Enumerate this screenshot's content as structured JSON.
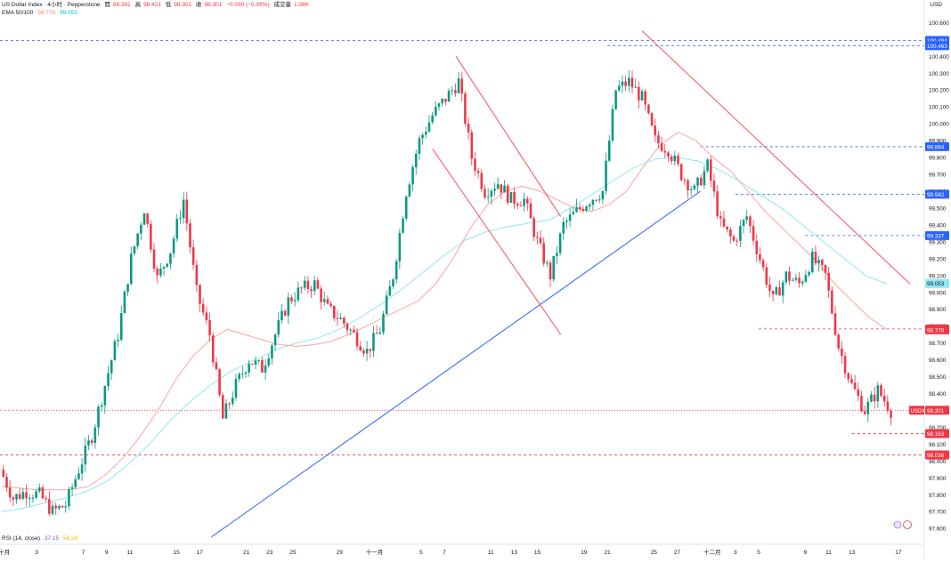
{
  "legend": {
    "symbol": "US Dollar Index · 4小时 · Pepperstone",
    "open_label": "開",
    "open": "98.391",
    "high_label": "高",
    "high": "98.421",
    "low_label": "低",
    "low": "98.301",
    "close_label": "收",
    "close": "98.301",
    "change": "−0.090 (−0.09%)",
    "volume_label": "成交量",
    "volume": "1.08K",
    "ema_label": "EMA 50/100",
    "ema50": "98.778",
    "ema100": "99.053",
    "rsi_label": "RSI (14, close)",
    "rsi1": "37.15",
    "rsi2": "54.24"
  },
  "currency": "USD",
  "colors": {
    "up": "#089981",
    "down": "#f23645",
    "ema50": "#f7a7a0",
    "ema100": "#8fe7f2",
    "trend_blue": "#2962ff",
    "channel": "#f7525f",
    "level": "#2962ff",
    "support": "#f23645"
  },
  "chart_data": {
    "type": "candlestick",
    "timeframe": "4h",
    "ylim": [
      97.58,
      100.66
    ],
    "y_ticks": [
      "100.600",
      "100.500",
      "100.400",
      "100.300",
      "100.200",
      "100.100",
      "100.000",
      "99.900",
      "99.800",
      "99.700",
      "99.600",
      "99.500",
      "99.400",
      "99.300",
      "99.200",
      "99.100",
      "99.000",
      "98.900",
      "98.800",
      "98.700",
      "98.600",
      "98.500",
      "98.400",
      "98.300",
      "98.200",
      "98.100",
      "98.000",
      "97.900",
      "97.800",
      "97.700",
      "97.600"
    ],
    "x_ticks": [
      {
        "label": "十月",
        "x": 0.2
      },
      {
        "label": "3",
        "x": 3
      },
      {
        "label": "7",
        "x": 7
      },
      {
        "label": "9",
        "x": 9
      },
      {
        "label": "11",
        "x": 11
      },
      {
        "label": "15",
        "x": 15
      },
      {
        "label": "17",
        "x": 17
      },
      {
        "label": "21",
        "x": 21
      },
      {
        "label": "23",
        "x": 23
      },
      {
        "label": "25",
        "x": 25
      },
      {
        "label": "29",
        "x": 29
      },
      {
        "label": "十一月",
        "x": 32
      },
      {
        "label": "5",
        "x": 36
      },
      {
        "label": "7",
        "x": 38
      },
      {
        "label": "11",
        "x": 42
      },
      {
        "label": "13",
        "x": 44
      },
      {
        "label": "15",
        "x": 46
      },
      {
        "label": "19",
        "x": 50
      },
      {
        "label": "21",
        "x": 52
      },
      {
        "label": "25",
        "x": 56
      },
      {
        "label": "27",
        "x": 58
      },
      {
        "label": "十二月",
        "x": 61
      },
      {
        "label": "3",
        "x": 63
      },
      {
        "label": "5",
        "x": 65
      },
      {
        "label": "9",
        "x": 69
      },
      {
        "label": "11",
        "x": 71
      },
      {
        "label": "13",
        "x": 73
      },
      {
        "label": "17",
        "x": 77
      }
    ],
    "close": [
      97.95,
      97.78,
      97.82,
      97.8,
      97.7,
      97.74,
      97.95,
      98.15,
      98.45,
      98.75,
      99.2,
      99.5,
      99.08,
      99.25,
      99.55,
      99.0,
      98.75,
      98.25,
      98.45,
      98.6,
      98.55,
      98.75,
      98.95,
      99.02,
      99.05,
      98.9,
      98.84,
      98.75,
      98.65,
      98.78,
      99.1,
      99.6,
      99.9,
      100.05,
      100.15,
      100.25,
      99.8,
      99.6,
      99.65,
      99.55,
      99.55,
      99.3,
      99.1,
      99.4,
      99.48,
      99.55,
      99.6,
      100.2,
      100.25,
      100.15,
      99.9,
      99.85,
      99.7,
      99.6,
      99.75,
      99.4,
      99.3,
      99.45,
      99.2,
      98.95,
      99.1,
      99.05,
      99.2,
      99.1,
      98.68,
      98.45,
      98.3,
      98.42,
      98.3
    ],
    "ema50": [
      97.85,
      97.84,
      97.83,
      97.83,
      97.83,
      97.85,
      97.92,
      98.02,
      98.15,
      98.3,
      98.48,
      98.62,
      98.72,
      98.78,
      98.75,
      98.72,
      98.69,
      98.68,
      98.69,
      98.71,
      98.75,
      98.8,
      98.85,
      98.9,
      98.95,
      99.05,
      99.2,
      99.38,
      99.52,
      99.6,
      99.63,
      99.6,
      99.55,
      99.5,
      99.48,
      99.52,
      99.6,
      99.75,
      99.88,
      99.95,
      99.9,
      99.8,
      99.72,
      99.6,
      99.48,
      99.38,
      99.28,
      99.18,
      99.05,
      98.95,
      98.85,
      98.78
    ],
    "ema100": [
      97.7,
      97.72,
      97.75,
      97.78,
      97.82,
      97.88,
      97.98,
      98.1,
      98.24,
      98.36,
      98.46,
      98.54,
      98.6,
      98.66,
      98.7,
      98.73,
      98.78,
      98.85,
      98.93,
      99.02,
      99.12,
      99.22,
      99.31,
      99.36,
      99.39,
      99.41,
      99.43,
      99.5,
      99.58,
      99.66,
      99.74,
      99.79,
      99.8,
      99.78,
      99.73,
      99.66,
      99.58,
      99.5,
      99.4,
      99.3,
      99.2,
      99.1,
      99.05
    ],
    "trendlines": [
      {
        "name": "ascending-support",
        "from": [
          18,
          97.55
        ],
        "to": [
          60,
          99.6
        ]
      },
      {
        "name": "channel-upper-a",
        "from": [
          39,
          100.4
        ],
        "to": [
          48,
          99.45
        ]
      },
      {
        "name": "channel-lower-a",
        "from": [
          37,
          99.85
        ],
        "to": [
          48,
          98.75
        ]
      },
      {
        "name": "descending-resistance",
        "from": [
          55,
          100.55
        ],
        "to": [
          78,
          99.05
        ]
      }
    ],
    "price_labels": [
      {
        "value": "100.494",
        "kind": "level"
      },
      {
        "value": "100.463",
        "kind": "level"
      },
      {
        "value": "99.864",
        "kind": "level"
      },
      {
        "value": "99.582",
        "kind": "level"
      },
      {
        "value": "99.337",
        "kind": "level"
      },
      {
        "value": "99.053",
        "kind": "ema100"
      },
      {
        "value": "98.783",
        "kind": "support"
      },
      {
        "value": "98.778",
        "kind": "ema50"
      },
      {
        "value": "98.301",
        "kind": "last"
      },
      {
        "value": "98.163",
        "kind": "support"
      },
      {
        "value": "98.036",
        "kind": "support"
      }
    ],
    "last_label": "USDX"
  }
}
